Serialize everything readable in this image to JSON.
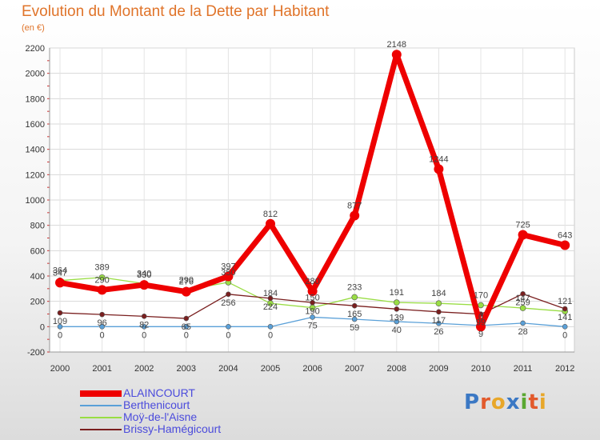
{
  "chart_data": {
    "type": "line",
    "title": "Evolution du Montant de la Dette par Habitant",
    "subtitle": "(en €)",
    "xlabel": "",
    "ylabel": "",
    "ylim": [
      -200,
      2200
    ],
    "y_ticks": [
      -200,
      0,
      200,
      400,
      600,
      800,
      1000,
      1200,
      1400,
      1600,
      1800,
      2000,
      2200
    ],
    "categories": [
      "2000",
      "2001",
      "2002",
      "2003",
      "2004",
      "2005",
      "2006",
      "2007",
      "2008",
      "2009",
      "2010",
      "2011",
      "2012"
    ],
    "series": [
      {
        "name": "ALAINCOURT",
        "color": "#ee0000",
        "values": [
          347,
          290,
          330,
          276,
          397,
          812,
          280,
          877,
          2148,
          1244,
          0,
          725,
          643
        ]
      },
      {
        "name": "Berthenicourt",
        "color": "#5aa0d8",
        "values": [
          0,
          0,
          0,
          0,
          0,
          0,
          75,
          59,
          40,
          26,
          9,
          28,
          0
        ]
      },
      {
        "name": "Moÿ-de-l'Aisne",
        "color": "#99dd44",
        "values": [
          364,
          389,
          340,
          290,
          350,
          184,
          150,
          233,
          191,
          184,
          170,
          147,
          121
        ]
      },
      {
        "name": "Brissy-Hamégicourt",
        "color": "#7a1f1f",
        "values": [
          109,
          96,
          82,
          65,
          256,
          224,
          190,
          165,
          139,
          117,
          99,
          259,
          141
        ]
      }
    ],
    "labels_shown": [
      [
        "347",
        "0",
        "364",
        "109"
      ],
      [
        "290",
        "0",
        "389",
        "96"
      ],
      [
        "330",
        "0",
        "340",
        "82"
      ],
      [
        "276",
        "0",
        "290",
        "65"
      ],
      [
        "397",
        "0",
        "350",
        "256"
      ],
      [
        "812",
        "0",
        "184",
        "224"
      ],
      [
        "280",
        "75",
        "150",
        "190"
      ],
      [
        "877",
        "59",
        "233",
        "165"
      ],
      [
        "2148",
        "40",
        "191",
        "139"
      ],
      [
        "1244",
        "26",
        "184",
        "117"
      ],
      [
        "0",
        "9",
        "170",
        "99"
      ],
      [
        "725",
        "28",
        "147",
        "259"
      ],
      [
        "643",
        "0",
        "121",
        "141"
      ]
    ]
  },
  "legend": {
    "items": [
      {
        "label": "ALAINCOURT",
        "color": "#ee0000"
      },
      {
        "label": "Berthenicourt",
        "color": "#5aa0d8"
      },
      {
        "label": "Moÿ-de-l'Aisne",
        "color": "#99dd44"
      },
      {
        "label": "Brissy-Hamégicourt",
        "color": "#7a1f1f"
      }
    ]
  },
  "logo": {
    "letters": [
      "P",
      "r",
      "o",
      "x",
      "i",
      "t",
      "i"
    ],
    "colors": [
      "#3b78c4",
      "#e25a2c",
      "#e8a72a",
      "#3b78c4",
      "#5aa832",
      "#e25a2c",
      "#e8a72a"
    ]
  }
}
